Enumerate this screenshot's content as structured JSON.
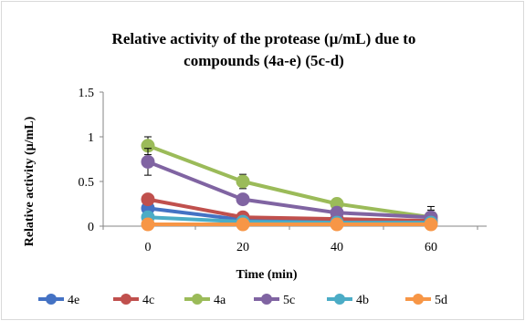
{
  "chart_data": {
    "type": "line",
    "title_lines": [
      "Relative activity of the protease (µ/mL) due to",
      "compounds (4a-e) (5c-d)"
    ],
    "xlabel": "Time (min)",
    "ylabel": "Relative activity (µ/mL)",
    "x": [
      0,
      20,
      40,
      60
    ],
    "x_tick_labels": [
      "0",
      "20",
      "40",
      "60"
    ],
    "y_tick_labels": [
      "0",
      "0.5",
      "1",
      "1.5"
    ],
    "ylim": [
      0,
      1.5
    ],
    "y_ticks": [
      0,
      0.5,
      1,
      1.5
    ],
    "grid": false,
    "legend_position": "bottom",
    "series": [
      {
        "name": "4e",
        "color": "#4472c4",
        "values": [
          0.2,
          0.07,
          0.05,
          0.05
        ],
        "error": [
          0.02,
          0.01,
          0.01,
          0.01
        ]
      },
      {
        "name": "4c",
        "color": "#c0504d",
        "values": [
          0.3,
          0.1,
          0.08,
          0.06
        ],
        "error": [
          0.05,
          0.03,
          0.02,
          0.02
        ]
      },
      {
        "name": "4a",
        "color": "#9bbb59",
        "values": [
          0.9,
          0.5,
          0.25,
          0.1
        ],
        "error": [
          0.1,
          0.08,
          0.06,
          0.08
        ]
      },
      {
        "name": "5c",
        "color": "#8064a2",
        "values": [
          0.72,
          0.3,
          0.15,
          0.1
        ],
        "error": [
          0.15,
          0.05,
          0.04,
          0.12
        ]
      },
      {
        "name": "4b",
        "color": "#4bacc6",
        "values": [
          0.1,
          0.05,
          0.04,
          0.04
        ],
        "error": [
          0.01,
          0.01,
          0.01,
          0.01
        ]
      },
      {
        "name": "5d",
        "color": "#f79646",
        "values": [
          0.02,
          0.02,
          0.02,
          0.02
        ],
        "error": [
          0.005,
          0.005,
          0.005,
          0.005
        ]
      }
    ]
  }
}
